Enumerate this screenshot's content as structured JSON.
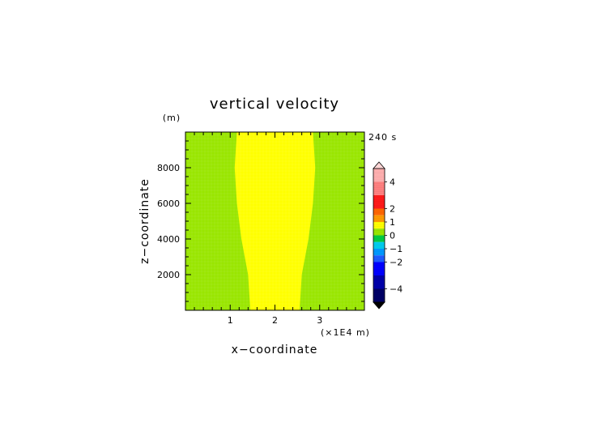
{
  "chart_data": {
    "type": "heatmap",
    "title": "vertical velocity",
    "xlabel": "x−coordinate",
    "ylabel": "z−coordinate",
    "x_units": "(×1E4 m)",
    "y_units": "(m)",
    "time_label": "240 s",
    "xlim": [
      0,
      4
    ],
    "ylim": [
      0,
      10000
    ],
    "x_ticks": [
      {
        "value": 1,
        "label": "1"
      },
      {
        "value": 2,
        "label": "2"
      },
      {
        "value": 3,
        "label": "3"
      }
    ],
    "y_ticks": [
      {
        "value": 2000,
        "label": "2000"
      },
      {
        "value": 4000,
        "label": "4000"
      },
      {
        "value": 6000,
        "label": "6000"
      },
      {
        "value": 8000,
        "label": "8000"
      }
    ],
    "field": {
      "background_level": "0 to 0.5",
      "region_level": "0.5 to 1",
      "region_boundary": [
        {
          "z": 0,
          "x_left": 1.45,
          "x_right": 2.55
        },
        {
          "z": 2000,
          "x_left": 1.4,
          "x_right": 2.6
        },
        {
          "z": 4000,
          "x_left": 1.25,
          "x_right": 2.75
        },
        {
          "z": 6000,
          "x_left": 1.15,
          "x_right": 2.85
        },
        {
          "z": 8000,
          "x_left": 1.1,
          "x_right": 2.9
        },
        {
          "z": 10000,
          "x_left": 1.15,
          "x_right": 2.85
        }
      ]
    },
    "colorbar": {
      "tick_labels": [
        {
          "value": 4,
          "label": "4"
        },
        {
          "value": 2,
          "label": "2"
        },
        {
          "value": 1,
          "label": "1"
        },
        {
          "value": 0,
          "label": "0"
        },
        {
          "value": -1,
          "label": "−1"
        },
        {
          "value": -2,
          "label": "−2"
        },
        {
          "value": -4,
          "label": "−4"
        }
      ],
      "bands": [
        {
          "lo": 4,
          "hi": 5,
          "color": "#ffb0b0"
        },
        {
          "lo": 3,
          "hi": 4,
          "color": "#ff8080"
        },
        {
          "lo": 2,
          "hi": 3,
          "color": "#ff1a1a"
        },
        {
          "lo": 1.5,
          "hi": 2,
          "color": "#ff6600"
        },
        {
          "lo": 1,
          "hi": 1.5,
          "color": "#ff9a00"
        },
        {
          "lo": 0.5,
          "hi": 1,
          "color": "#ffff00"
        },
        {
          "lo": 0,
          "hi": 0.5,
          "color": "#99e600"
        },
        {
          "lo": -0.5,
          "hi": 0,
          "color": "#00cc44"
        },
        {
          "lo": -1,
          "hi": -0.5,
          "color": "#00ccee"
        },
        {
          "lo": -1.5,
          "hi": -1,
          "color": "#0099ff"
        },
        {
          "lo": -2,
          "hi": -1.5,
          "color": "#1e5cff"
        },
        {
          "lo": -3,
          "hi": -2,
          "color": "#0000ff"
        },
        {
          "lo": -4,
          "hi": -3,
          "color": "#0000aa"
        },
        {
          "lo": -5,
          "hi": -4,
          "color": "#000066"
        }
      ],
      "top_arrow_color": "#ffd6d6",
      "bottom_arrow_color": "#000000"
    }
  }
}
